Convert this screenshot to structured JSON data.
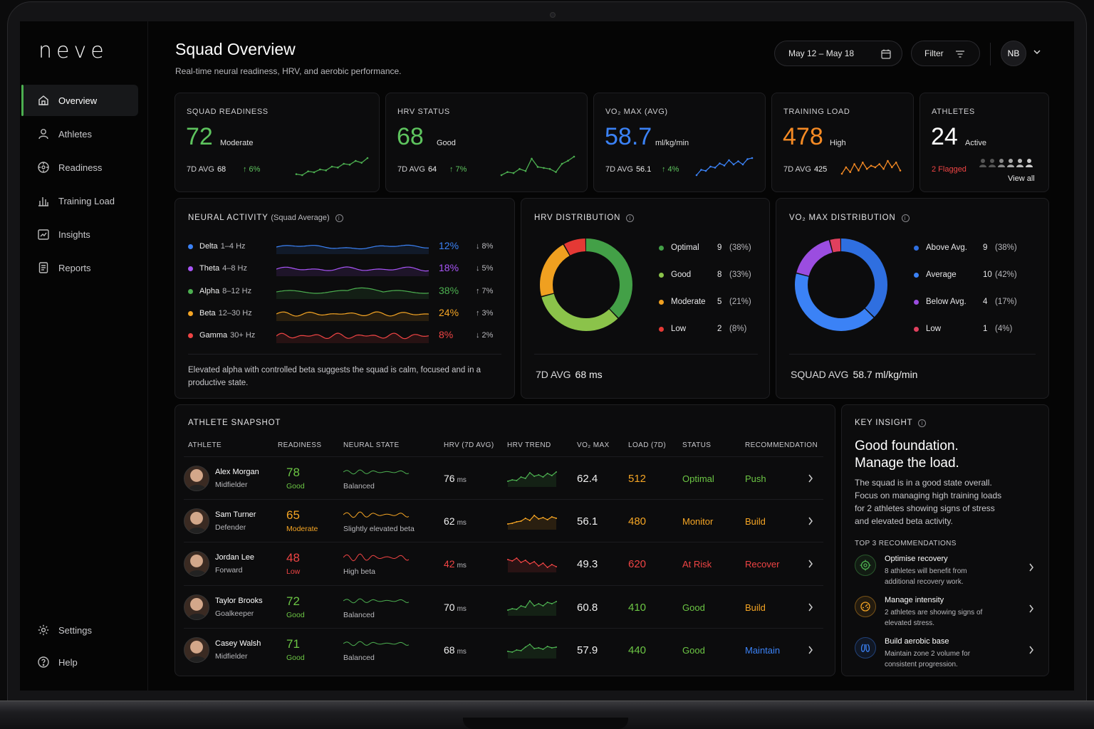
{
  "app": {
    "logo": "neve"
  },
  "nav": {
    "items": [
      {
        "label": "Overview",
        "icon": "home-icon"
      },
      {
        "label": "Athletes",
        "icon": "user-icon"
      },
      {
        "label": "Readiness",
        "icon": "target-icon"
      },
      {
        "label": "Training Load",
        "icon": "bar-chart-icon"
      },
      {
        "label": "Insights",
        "icon": "insights-icon"
      },
      {
        "label": "Reports",
        "icon": "report-icon"
      }
    ],
    "bottom": [
      {
        "label": "Settings",
        "icon": "gear-icon"
      },
      {
        "label": "Help",
        "icon": "help-icon"
      }
    ]
  },
  "header": {
    "title": "Squad Overview",
    "subtitle": "Real-time neural readiness, HRV, and aerobic performance.",
    "date_range": "May 12 – May 18",
    "filter": "Filter",
    "user_initials": "NB"
  },
  "kpis": {
    "readiness": {
      "label": "SQUAD READINESS",
      "value": "72",
      "qual": "Moderate",
      "avg_label": "7D AVG",
      "avg": "68",
      "delta": "↑ 6%",
      "trend": [
        6,
        5,
        9,
        8,
        11,
        10,
        14,
        13,
        17,
        16,
        20,
        18,
        23
      ]
    },
    "hrv": {
      "label": "HRV STATUS",
      "value": "68",
      "qual": "Good",
      "avg_label": "7D AVG",
      "avg": "64",
      "delta": "↑ 7%",
      "trend": [
        6,
        9,
        8,
        12,
        10,
        22,
        14,
        13,
        12,
        9,
        17,
        20,
        24
      ]
    },
    "vo2": {
      "label": "VO₂ MAX (AVG)",
      "value": "58.7",
      "unit": "ml/kg/min",
      "avg_label": "7D AVG",
      "avg": "56.1",
      "delta": "↑ 4%",
      "trend": [
        5,
        10,
        9,
        13,
        12,
        16,
        14,
        19,
        15,
        18,
        15,
        20,
        21
      ]
    },
    "load": {
      "label": "TRAINING LOAD",
      "value": "478",
      "qual": "High",
      "avg_label": "7D AVG",
      "avg": "425",
      "trend": [
        8,
        12,
        9,
        14,
        10,
        15,
        11,
        13,
        12,
        14,
        11,
        16,
        12,
        15,
        10
      ]
    },
    "athletes": {
      "label": "ATHLETES",
      "value": "24",
      "qual": "Active",
      "flagged": "2 Flagged",
      "view_all": "View all"
    }
  },
  "neural": {
    "title": "NEURAL ACTIVITY",
    "title_note": "(Squad Average)",
    "bands": [
      {
        "name": "Delta",
        "range": "1–4 Hz",
        "pct": "12%",
        "delta": "↓ 8%",
        "color": "#3b82f6"
      },
      {
        "name": "Theta",
        "range": "4–8 Hz",
        "pct": "18%",
        "delta": "↓ 5%",
        "color": "#a855f7"
      },
      {
        "name": "Alpha",
        "range": "8–12 Hz",
        "pct": "38%",
        "delta": "↑ 7%",
        "color": "#4caf50"
      },
      {
        "name": "Beta",
        "range": "12–30 Hz",
        "pct": "24%",
        "delta": "↑ 3%",
        "color": "#f5a524"
      },
      {
        "name": "Gamma",
        "range": "30+ Hz",
        "pct": "8%",
        "delta": "↓ 2%",
        "color": "#ef4444"
      }
    ],
    "note": "Elevated alpha with controlled beta suggests the squad is calm, focused and in a productive state."
  },
  "hrv_dist": {
    "title": "HRV DISTRIBUTION",
    "segments": [
      {
        "label": "Optimal",
        "count": "9",
        "pct": "(38%)",
        "color": "#43a047",
        "value": 38
      },
      {
        "label": "Good",
        "count": "8",
        "pct": "(33%)",
        "color": "#8bc34a",
        "value": 33
      },
      {
        "label": "Moderate",
        "count": "5",
        "pct": "(21%)",
        "color": "#f0a020",
        "value": 21
      },
      {
        "label": "Low",
        "count": "2",
        "pct": "(8%)",
        "color": "#e53935",
        "value": 8
      }
    ],
    "footer_label": "7D AVG",
    "footer_value": "68 ms"
  },
  "vo2_dist": {
    "title": "VO₂ MAX DISTRIBUTION",
    "segments": [
      {
        "label": "Above Avg.",
        "count": "9",
        "pct": "(38%)",
        "color": "#2f6fe0",
        "value": 38
      },
      {
        "label": "Average",
        "count": "10",
        "pct": "(42%)",
        "color": "#3b82f6",
        "value": 42
      },
      {
        "label": "Below Avg.",
        "count": "4",
        "pct": "(17%)",
        "color": "#9b4de0",
        "value": 17
      },
      {
        "label": "Low",
        "count": "1",
        "pct": "(4%)",
        "color": "#e0405e",
        "value": 4
      }
    ],
    "footer_label": "SQUAD AVG",
    "footer_value": "58.7 ml/kg/min"
  },
  "snapshot": {
    "title": "ATHLETE SNAPSHOT",
    "columns": [
      "ATHLETE",
      "READINESS",
      "NEURAL STATE",
      "HRV (7D AVG)",
      "HRV TREND",
      "VO₂ MAX",
      "LOAD (7D)",
      "STATUS",
      "RECOMMENDATION"
    ],
    "rows": [
      {
        "name": "Alex Morgan",
        "role": "Midfielder",
        "readiness": "78",
        "rq": "Good",
        "neural": "Balanced",
        "hrv": "76",
        "unit": "ms",
        "vo2": "62.4",
        "load": "512",
        "status": "Optimal",
        "rec": "Push",
        "rcolor": "#6cc644",
        "lcolor": "#f5a524",
        "scolor": "#6cc644",
        "reccolor": "#6cc644",
        "ncolor": "#4caf50",
        "hcolor": "#f0f0f0"
      },
      {
        "name": "Sam Turner",
        "role": "Defender",
        "readiness": "65",
        "rq": "Moderate",
        "neural": "Slightly elevated beta",
        "hrv": "62",
        "unit": "ms",
        "vo2": "56.1",
        "load": "480",
        "status": "Monitor",
        "rec": "Build",
        "rcolor": "#f5a524",
        "lcolor": "#f5a524",
        "scolor": "#f5a524",
        "reccolor": "#f5a524",
        "ncolor": "#f5a524",
        "hcolor": "#f0f0f0"
      },
      {
        "name": "Jordan Lee",
        "role": "Forward",
        "readiness": "48",
        "rq": "Low",
        "neural": "High beta",
        "hrv": "42",
        "unit": "ms",
        "vo2": "49.3",
        "load": "620",
        "status": "At Risk",
        "rec": "Recover",
        "rcolor": "#ef4444",
        "lcolor": "#ef4444",
        "scolor": "#ef4444",
        "reccolor": "#ef4444",
        "ncolor": "#ef4444",
        "hcolor": "#ef4444"
      },
      {
        "name": "Taylor Brooks",
        "role": "Goalkeeper",
        "readiness": "72",
        "rq": "Good",
        "neural": "Balanced",
        "hrv": "70",
        "unit": "ms",
        "vo2": "60.8",
        "load": "410",
        "status": "Good",
        "rec": "Build",
        "rcolor": "#6cc644",
        "lcolor": "#6cc644",
        "scolor": "#6cc644",
        "reccolor": "#f5a524",
        "ncolor": "#4caf50",
        "hcolor": "#f0f0f0"
      },
      {
        "name": "Casey Walsh",
        "role": "Midfielder",
        "readiness": "71",
        "rq": "Good",
        "neural": "Balanced",
        "hrv": "68",
        "unit": "ms",
        "vo2": "57.9",
        "load": "440",
        "status": "Good",
        "rec": "Maintain",
        "rcolor": "#6cc644",
        "lcolor": "#6cc644",
        "scolor": "#6cc644",
        "reccolor": "#3b82f6",
        "ncolor": "#4caf50",
        "hcolor": "#f0f0f0"
      }
    ]
  },
  "insight": {
    "title": "KEY INSIGHT",
    "headline1": "Good foundation.",
    "headline2": "Manage the load.",
    "body": "The squad is in a good state overall. Focus on managing high training loads for 2 athletes showing signs of stress and elevated beta activity.",
    "sub": "TOP 3 RECOMMENDATIONS",
    "recs": [
      {
        "title": "Optimise recovery",
        "desc": "8 athletes will benefit from additional recovery work.",
        "color": "#4caf50",
        "icon": "target-icon"
      },
      {
        "title": "Manage intensity",
        "desc": "2 athletes are showing signs of elevated stress.",
        "color": "#f5a524",
        "icon": "gauge-icon"
      },
      {
        "title": "Build aerobic base",
        "desc": "Maintain zone 2 volume for consistent progression.",
        "color": "#3b82f6",
        "icon": "lungs-icon"
      }
    ]
  }
}
